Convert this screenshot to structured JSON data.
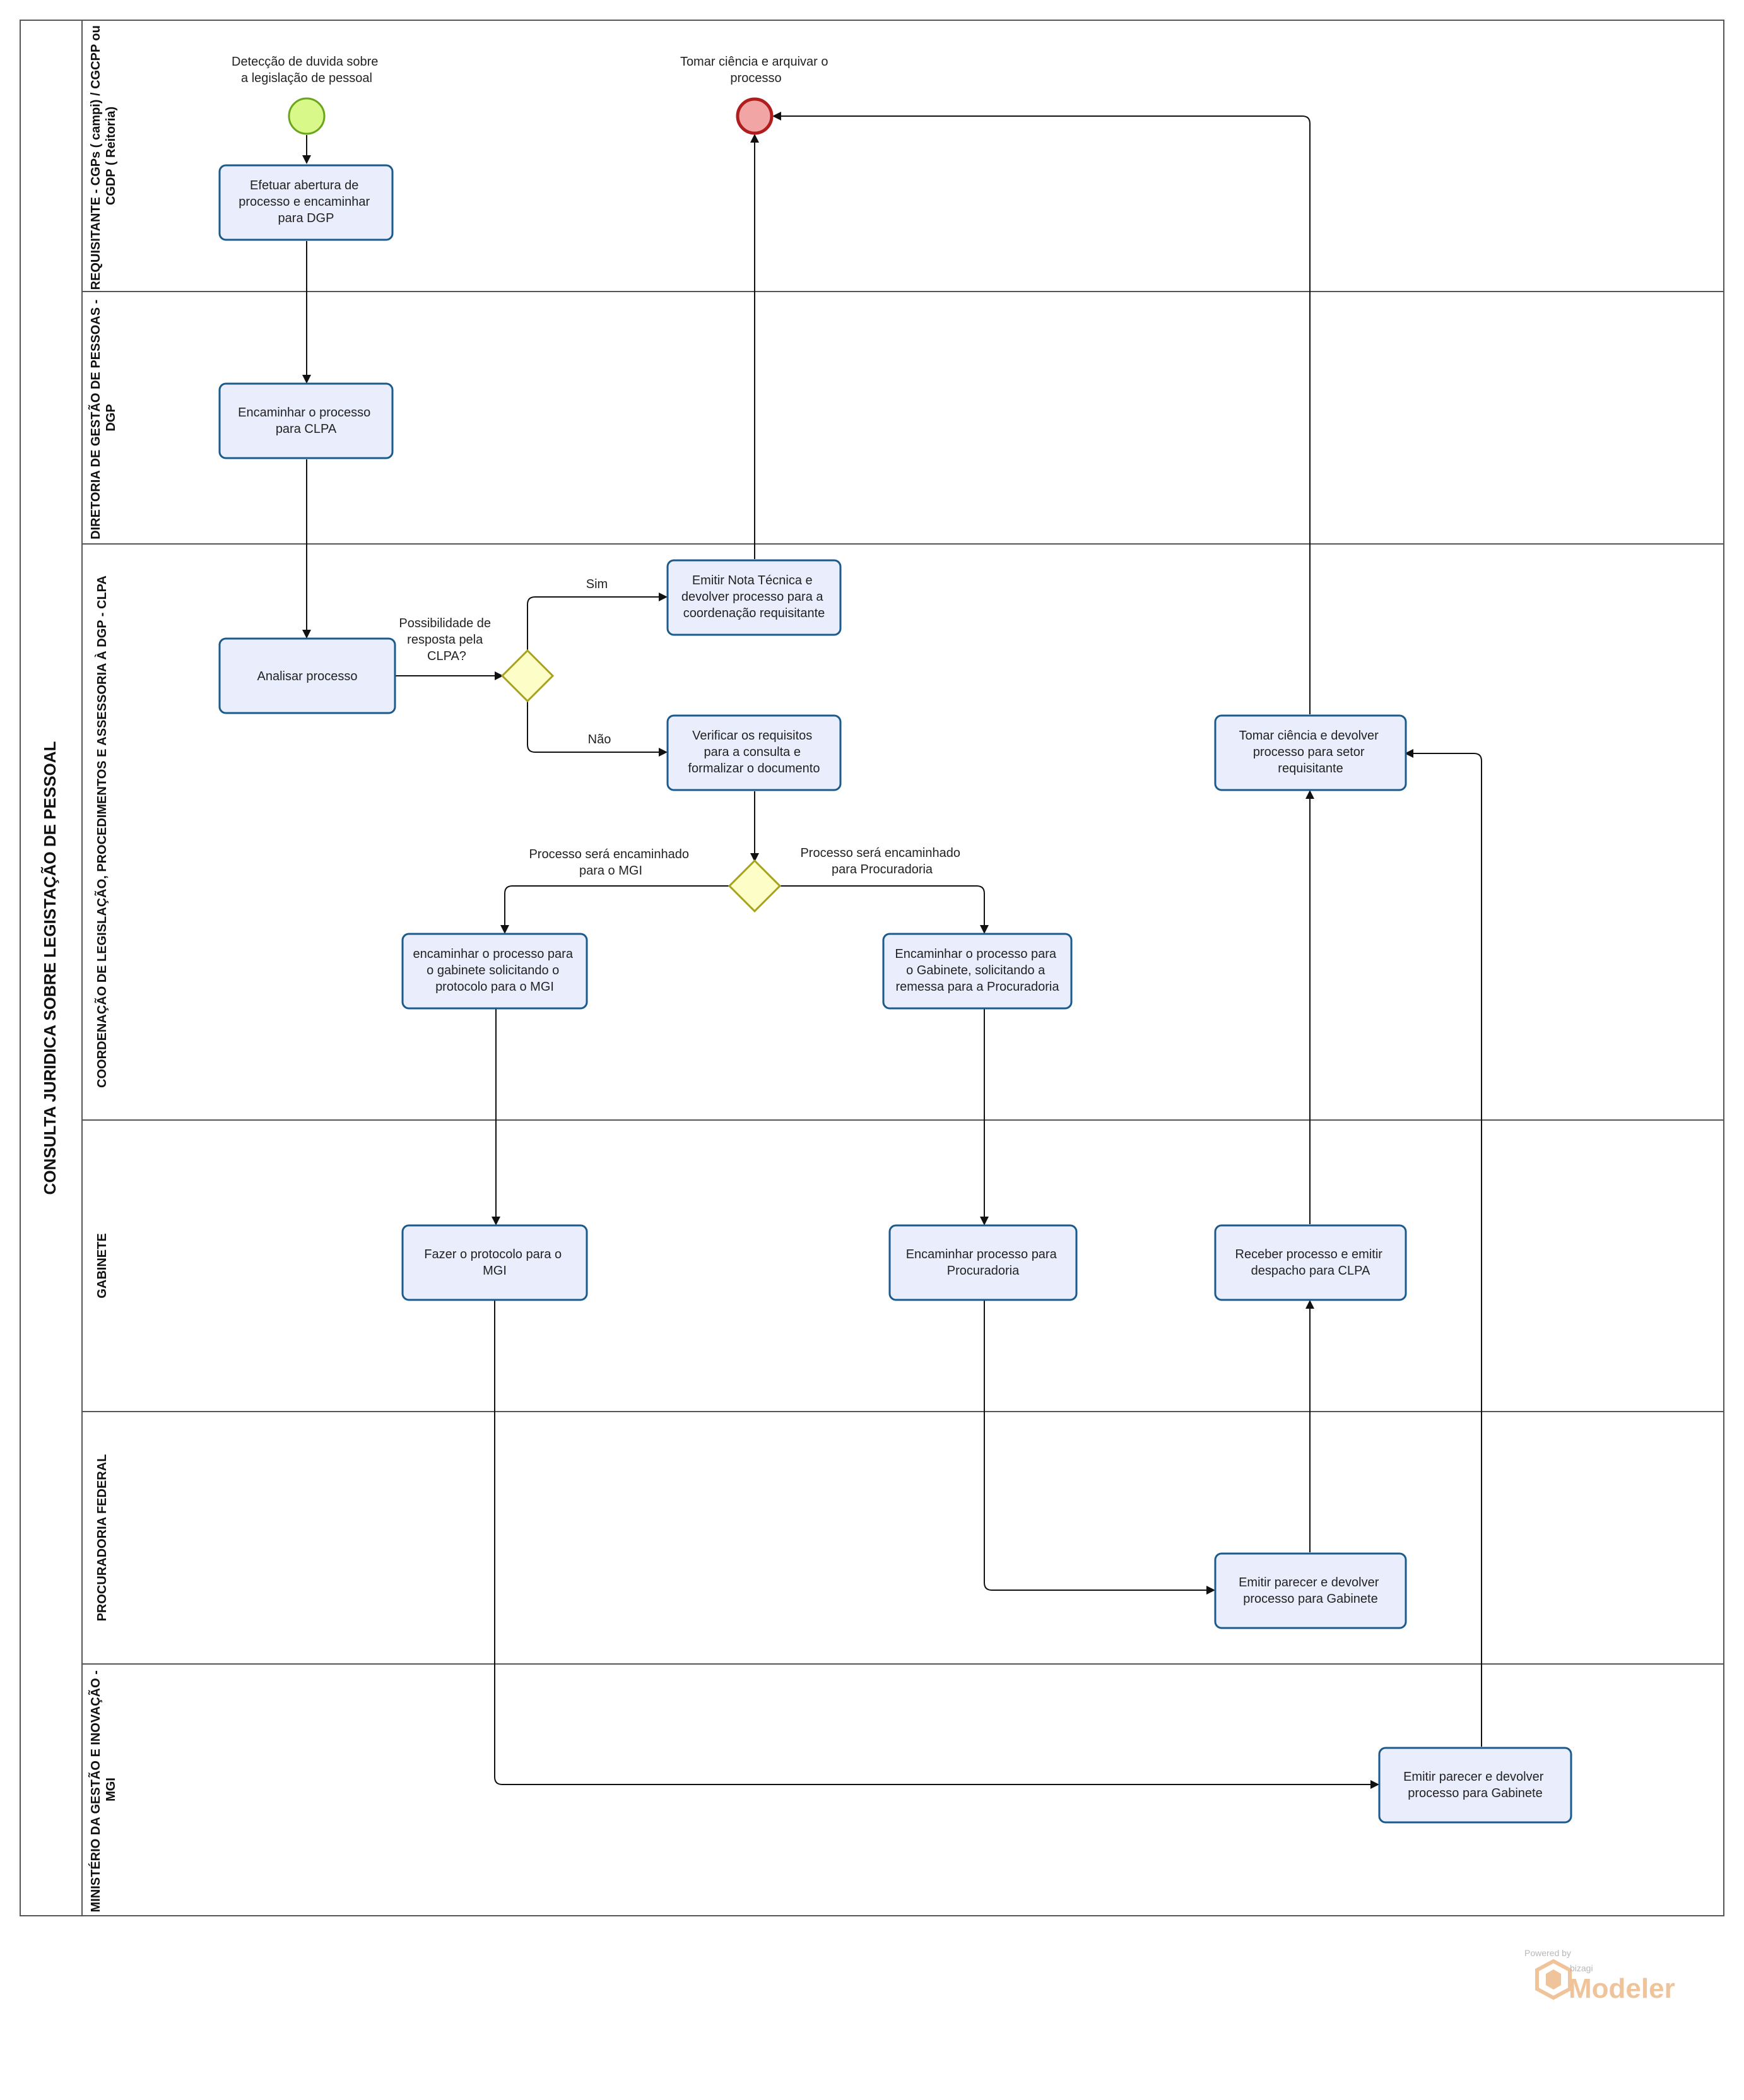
{
  "pool": {
    "title": "CONSULTA JURIDICA SOBRE LEGISTAÇÃO DE PESSOAL"
  },
  "lanes": {
    "requisitante": [
      "REQUISITANTE - CGPs ( campi) / CGCPP ou",
      "CGDP ( Reitoria)"
    ],
    "dgp": [
      "DIRETORIA DE GESTÃO DE PESSOAS -",
      "DGP"
    ],
    "clpa": [
      "COORDENAÇÃO DE LEGISLAÇÃO, PROCEDIMENTOS E ASSESSORIA À DGP - CLPA"
    ],
    "gabinete": [
      "GABINETE"
    ],
    "procuradoria": [
      "PROCURADORIA FEDERAL"
    ],
    "mgi": [
      "MINISTÉRIO DA GESTÃO E INOVAÇÃO -",
      "MGI"
    ]
  },
  "events": {
    "start": [
      "Detecção de duvida sobre",
      "a legislação de pessoal"
    ],
    "end": [
      "Tomar ciência e arquivar o",
      "processo"
    ]
  },
  "tasks": {
    "abertura": [
      "Efetuar abertura de",
      "processo e encaminhar",
      "para DGP"
    ],
    "encaminhar_clpa": [
      "Encaminhar o processo",
      "para CLPA"
    ],
    "analisar": [
      "Analisar processo"
    ],
    "nota_tecnica": [
      "Emitir Nota Técnica e",
      "devolver processo para a",
      "coordenação requisitante"
    ],
    "verificar": [
      "Verificar os requisitos",
      "para a consulta e",
      "formalizar o documento"
    ],
    "gab_mgi": [
      "encaminhar o processo para",
      "o gabinete solicitando o",
      "protocolo para o MGI"
    ],
    "gab_procuradoria": [
      "Encaminhar o processo para",
      "o Gabinete, solicitando a",
      "remessa para a Procuradoria"
    ],
    "tomar_ciencia": [
      "Tomar ciência e devolver",
      "processo para setor",
      "requisitante"
    ],
    "protocolo_mgi": [
      "Fazer o protocolo para o",
      "MGI"
    ],
    "enc_procuradoria": [
      "Encaminhar processo para",
      "Procuradoria"
    ],
    "receber": [
      "Receber processo e emitir",
      "despacho para CLPA"
    ],
    "parecer_proc": [
      "Emitir parecer e devolver",
      "processo para Gabinete"
    ],
    "parecer_mgi": [
      "Emitir parecer e devolver",
      "processo para Gabinete"
    ]
  },
  "gateways": {
    "possibilidade": [
      "Possibilidade de",
      "resposta pela",
      "CLPA?"
    ]
  },
  "flows": {
    "sim": "Sim",
    "nao": "Não",
    "mgi": [
      "Processo será encaminhado",
      "para o MGI"
    ],
    "procuradoria": [
      "Processo será encaminhado",
      "para Procuradoria"
    ]
  },
  "branding": {
    "powered": "Powered by",
    "brand": "bizagi",
    "product": "Modeler"
  },
  "colors": {
    "task_fill": "#eaeefc",
    "task_stroke": "#1a5a8c",
    "gateway_fill": "#fdfdc8",
    "gateway_stroke": "#a6a21a",
    "start_fill": "#d9f88a",
    "end_fill": "#f1a5a5",
    "end_stroke": "#b11c1c"
  }
}
